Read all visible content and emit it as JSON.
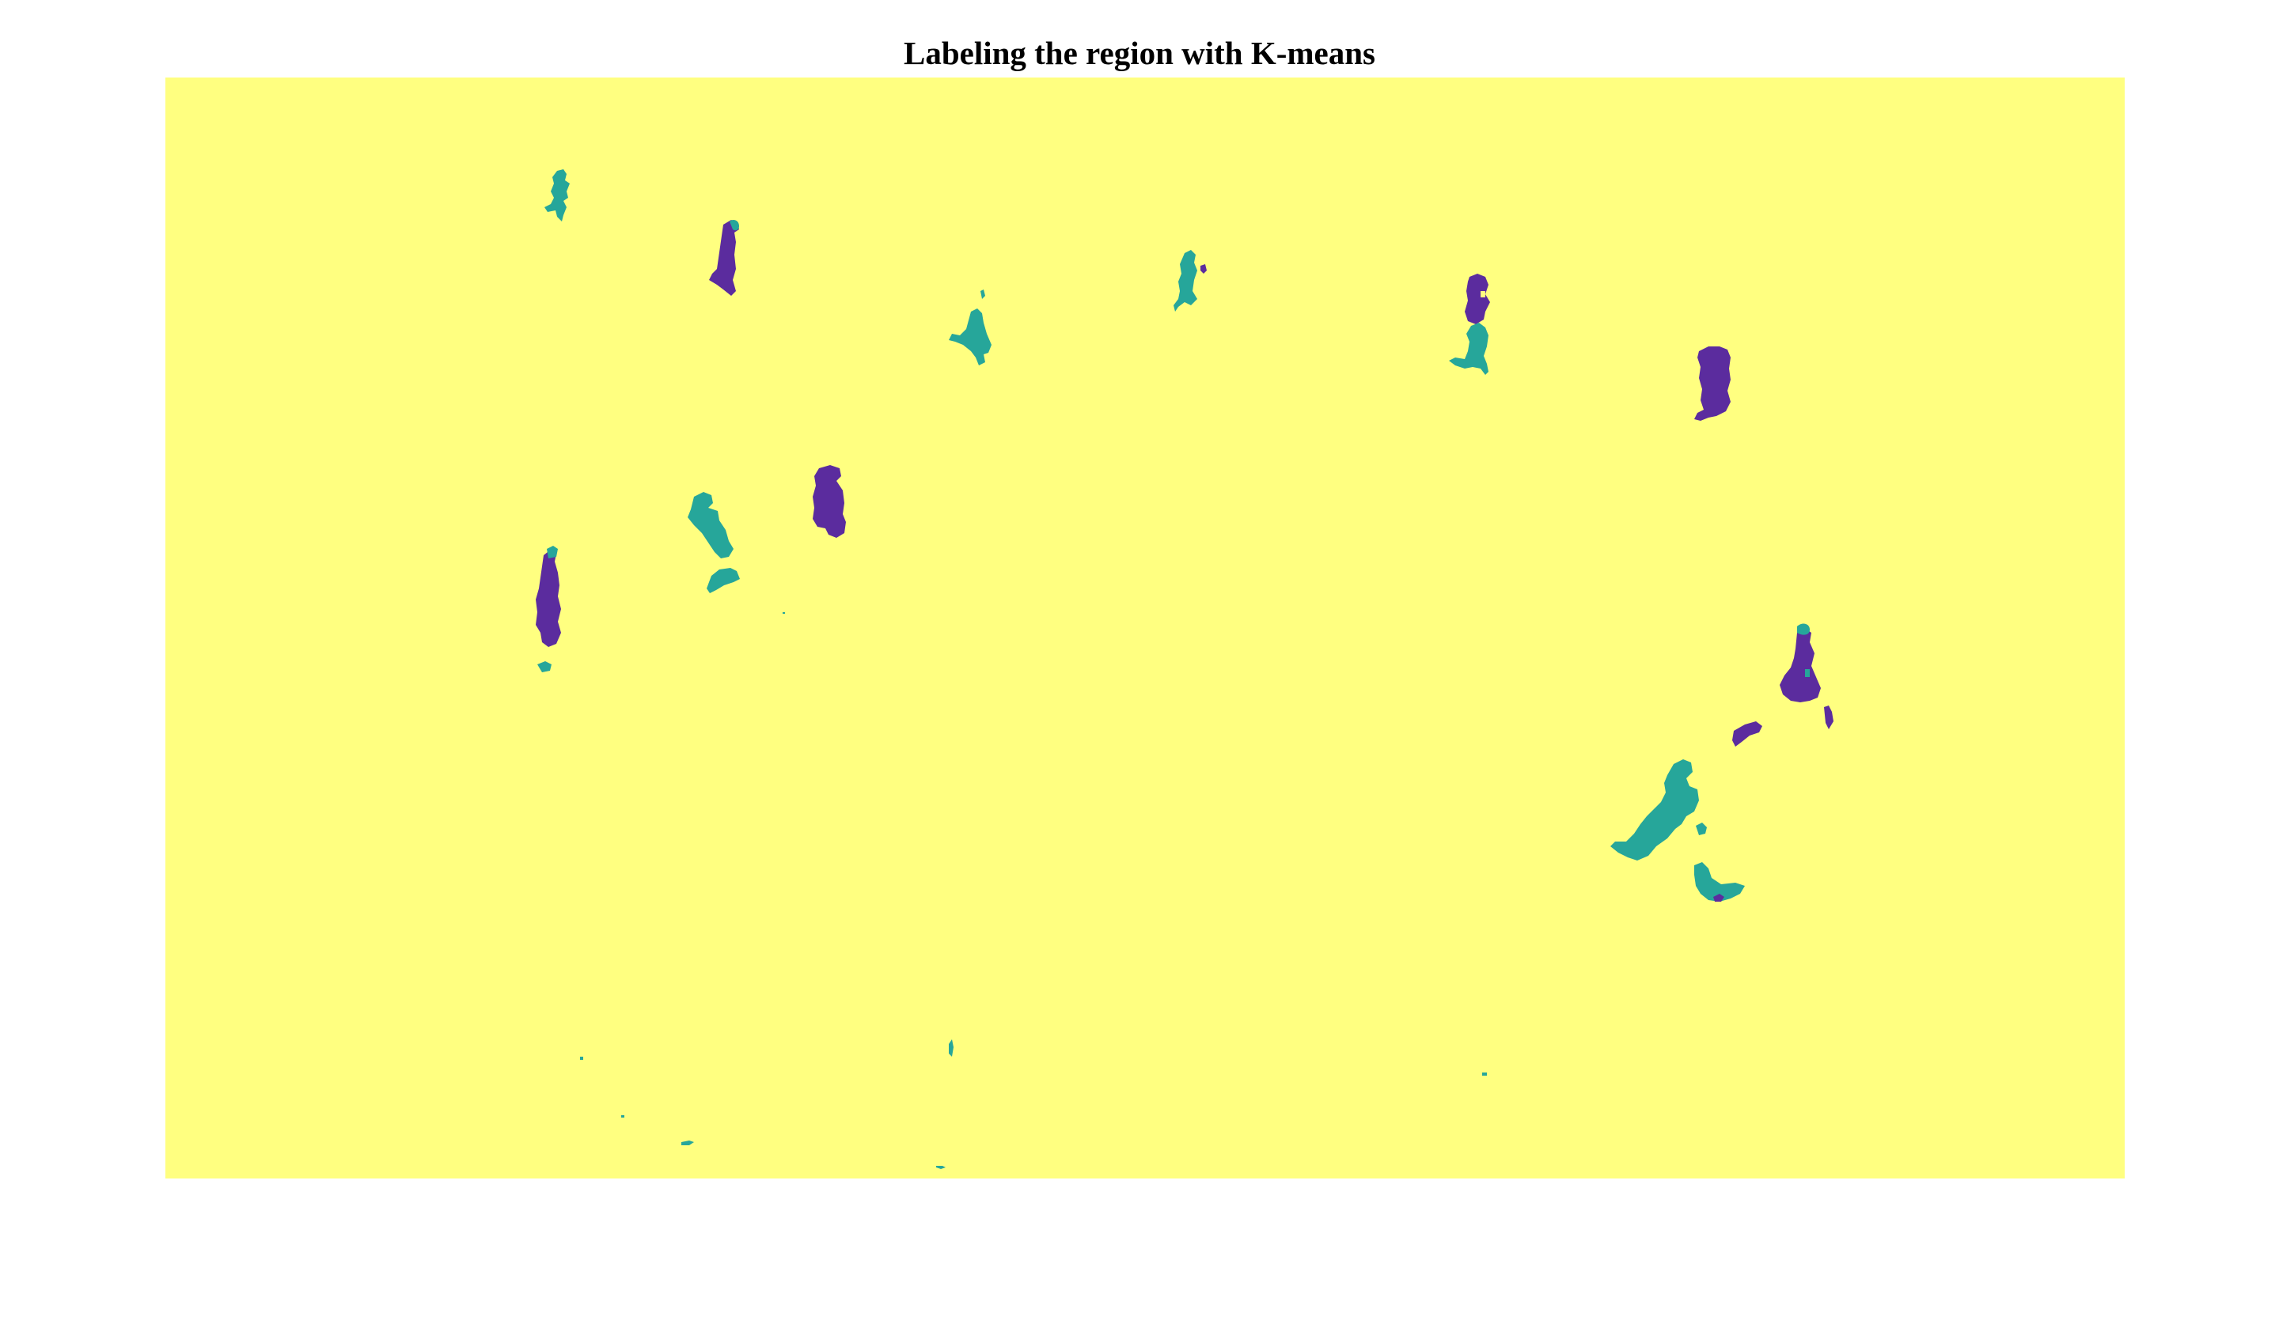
{
  "figure": {
    "title": "Labeling the region with K-means"
  },
  "colors": {
    "background": "#ffff80",
    "cluster_teal": "#26a69a",
    "cluster_teal_dark": "#1f8f8f",
    "cluster_purple": "#5b2c9e",
    "cluster_purple_dark": "#4a1f8a"
  }
}
